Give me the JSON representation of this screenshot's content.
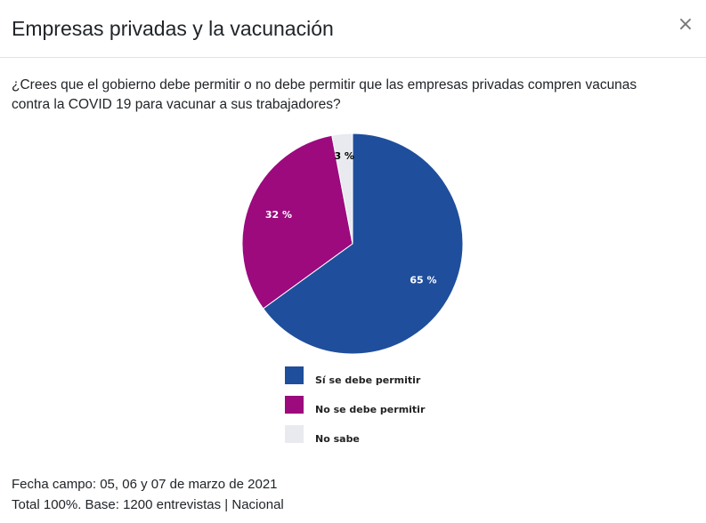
{
  "modal": {
    "title": "Empresas privadas y la vacunación",
    "close_glyph": "×",
    "question": "¿Crees que el gobierno debe permitir o no debe permitir que las empresas privadas compren vacunas contra la COVID 19 para vacunar a sus trabajadores?",
    "footer": {
      "line1": "Fecha campo: 05, 06 y 07 de marzo de 2021",
      "line2": "Total 100%. Base: 1200 entrevistas | Nacional"
    }
  },
  "chart_data": {
    "type": "pie",
    "title": "",
    "legend_position": "bottom",
    "slices": [
      {
        "label": "Sí se debe permitir",
        "value": 65,
        "display": "65 %",
        "color": "#1f4e9c",
        "label_color": "#ffffff"
      },
      {
        "label": "No se debe permitir",
        "value": 32,
        "display": "32 %",
        "color": "#9c0a7e",
        "label_color": "#ffffff"
      },
      {
        "label": "No sabe",
        "value": 3,
        "display": "3 %",
        "color": "#e8eaef",
        "label_color": "#000000"
      }
    ]
  }
}
